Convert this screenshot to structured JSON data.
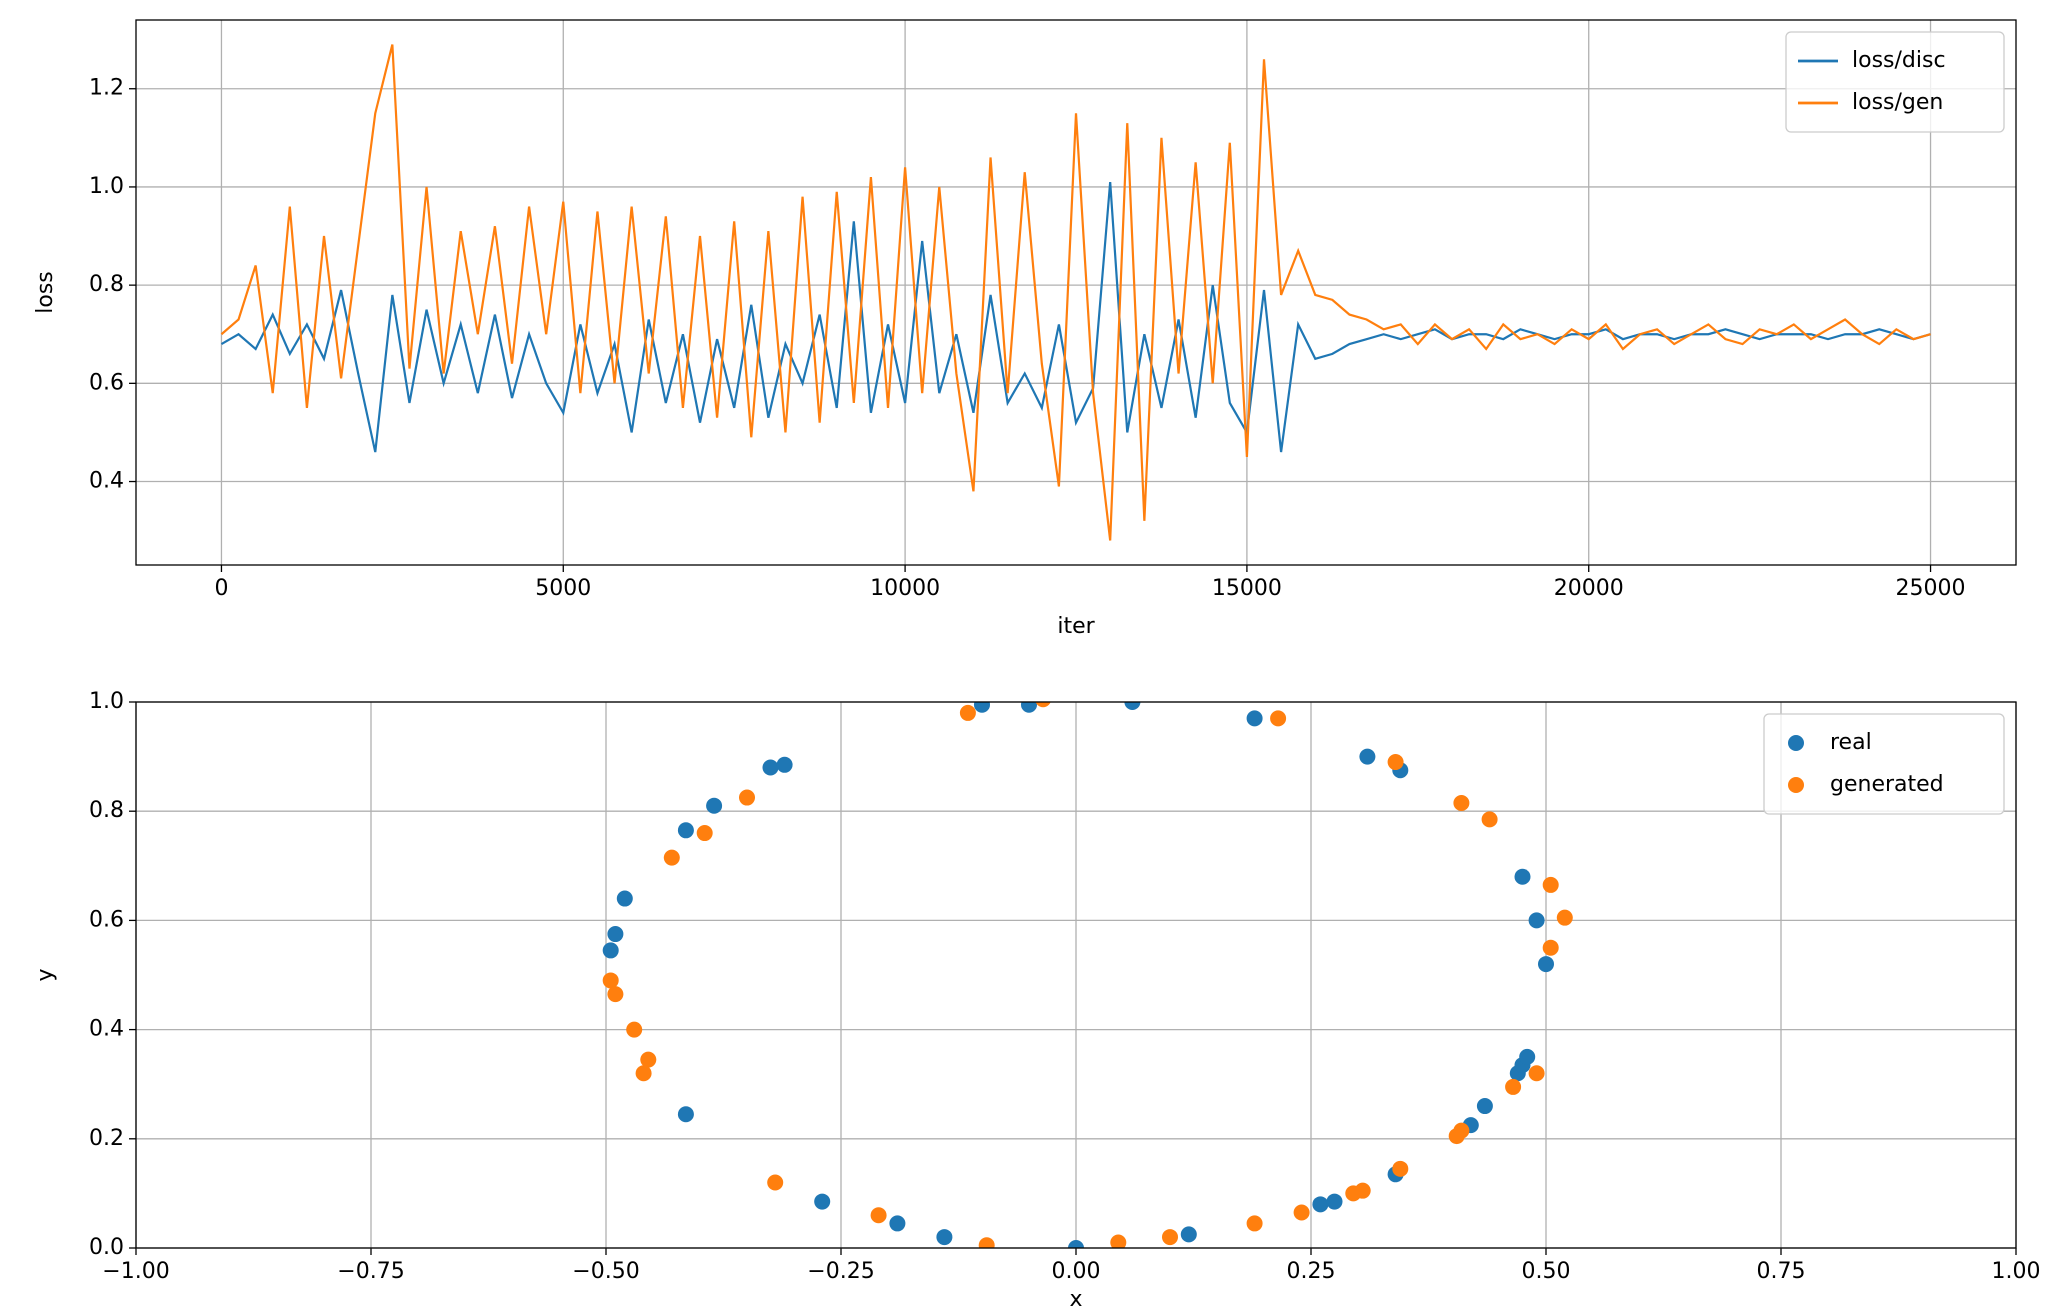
{
  "chart_data": [
    {
      "type": "line",
      "xlabel": "iter",
      "ylabel": "loss",
      "legend": "upper right",
      "grid": true,
      "xlim": [
        -1250,
        26250
      ],
      "ylim": [
        0.23,
        1.34
      ],
      "xticks": [
        0,
        5000,
        10000,
        15000,
        20000,
        25000
      ],
      "yticks": [
        0.4,
        0.6,
        0.8,
        {
          "value": 1.0,
          "label": "1.0"
        },
        1.2
      ],
      "x": [
        0,
        250,
        500,
        750,
        1000,
        1250,
        1500,
        1750,
        2000,
        2250,
        2500,
        2750,
        3000,
        3250,
        3500,
        3750,
        4000,
        4250,
        4500,
        4750,
        5000,
        5250,
        5500,
        5750,
        6000,
        6250,
        6500,
        6750,
        7000,
        7250,
        7500,
        7750,
        8000,
        8250,
        8500,
        8750,
        9000,
        9250,
        9500,
        9750,
        10000,
        10250,
        10500,
        10750,
        11000,
        11250,
        11500,
        11750,
        12000,
        12250,
        12500,
        12750,
        13000,
        13250,
        13500,
        13750,
        14000,
        14250,
        14500,
        14750,
        15000,
        15250,
        15500,
        15750,
        16000,
        16250,
        16500,
        16750,
        17000,
        17250,
        17500,
        17750,
        18000,
        18250,
        18500,
        18750,
        19000,
        19250,
        19500,
        19750,
        20000,
        20250,
        20500,
        20750,
        21000,
        21250,
        21500,
        21750,
        22000,
        22250,
        22500,
        22750,
        23000,
        23250,
        23500,
        23750,
        24000,
        24250,
        24500,
        24750,
        25000
      ],
      "series": [
        {
          "name": "loss/disc",
          "color": "#1f77b4",
          "values": [
            0.68,
            0.7,
            0.67,
            0.74,
            0.66,
            0.72,
            0.65,
            0.79,
            0.62,
            0.46,
            0.78,
            0.56,
            0.75,
            0.6,
            0.72,
            0.58,
            0.74,
            0.57,
            0.7,
            0.6,
            0.54,
            0.72,
            0.58,
            0.68,
            0.5,
            0.73,
            0.56,
            0.7,
            0.52,
            0.69,
            0.55,
            0.76,
            0.53,
            0.68,
            0.6,
            0.74,
            0.55,
            0.93,
            0.54,
            0.72,
            0.56,
            0.89,
            0.58,
            0.7,
            0.54,
            0.78,
            0.56,
            0.62,
            0.55,
            0.72,
            0.52,
            0.59,
            1.01,
            0.5,
            0.7,
            0.55,
            0.73,
            0.53,
            0.8,
            0.56,
            0.5,
            0.79,
            0.46,
            0.72,
            0.65,
            0.66,
            0.68,
            0.69,
            0.7,
            0.69,
            0.7,
            0.71,
            0.69,
            0.7,
            0.7,
            0.69,
            0.71,
            0.7,
            0.69,
            0.7,
            0.7,
            0.71,
            0.69,
            0.7,
            0.7,
            0.69,
            0.7,
            0.7,
            0.71,
            0.7,
            0.69,
            0.7,
            0.7,
            0.7,
            0.69,
            0.7,
            0.7,
            0.71,
            0.7,
            0.69,
            0.7
          ]
        },
        {
          "name": "loss/gen",
          "color": "#ff7f0e",
          "values": [
            0.7,
            0.73,
            0.84,
            0.58,
            0.96,
            0.55,
            0.9,
            0.61,
            0.88,
            1.15,
            1.29,
            0.63,
            1.0,
            0.62,
            0.91,
            0.7,
            0.92,
            0.64,
            0.96,
            0.7,
            0.97,
            0.58,
            0.95,
            0.6,
            0.96,
            0.62,
            0.94,
            0.55,
            0.9,
            0.53,
            0.93,
            0.49,
            0.91,
            0.5,
            0.98,
            0.52,
            0.99,
            0.56,
            1.02,
            0.55,
            1.04,
            0.58,
            1.0,
            0.62,
            0.38,
            1.06,
            0.58,
            1.03,
            0.64,
            0.39,
            1.15,
            0.58,
            0.28,
            1.13,
            0.32,
            1.1,
            0.62,
            1.05,
            0.6,
            1.09,
            0.45,
            1.26,
            0.78,
            0.87,
            0.78,
            0.77,
            0.74,
            0.73,
            0.71,
            0.72,
            0.68,
            0.72,
            0.69,
            0.71,
            0.67,
            0.72,
            0.69,
            0.7,
            0.68,
            0.71,
            0.69,
            0.72,
            0.67,
            0.7,
            0.71,
            0.68,
            0.7,
            0.72,
            0.69,
            0.68,
            0.71,
            0.7,
            0.72,
            0.69,
            0.71,
            0.73,
            0.7,
            0.68,
            0.71,
            0.69,
            0.7
          ]
        }
      ]
    },
    {
      "type": "scatter",
      "xlabel": "x",
      "ylabel": "y",
      "legend": "upper right",
      "grid": true,
      "xlim": [
        -1,
        1
      ],
      "ylim": [
        0,
        1
      ],
      "xticks": [
        {
          "value": -1,
          "label": "−1.00"
        },
        {
          "value": -0.75,
          "label": "−0.75"
        },
        {
          "value": -0.5,
          "label": "−0.50"
        },
        {
          "value": -0.25,
          "label": "−0.25"
        },
        {
          "value": 0,
          "label": "0.00"
        },
        {
          "value": 0.25,
          "label": "0.25"
        },
        {
          "value": 0.5,
          "label": "0.50"
        },
        {
          "value": 0.75,
          "label": "0.75"
        },
        {
          "value": 1,
          "label": "1.00"
        }
      ],
      "yticks": [
        {
          "value": 0,
          "label": "0.0"
        },
        0.2,
        0.4,
        0.6,
        0.8,
        {
          "value": 1,
          "label": "1.0"
        }
      ],
      "series": [
        {
          "name": "real",
          "color": "#1f77b4",
          "x": [
            -0.1,
            -0.05,
            0.06,
            0.19,
            0.31,
            0.345,
            -0.325,
            -0.31,
            -0.385,
            -0.415,
            -0.48,
            -0.49,
            -0.495,
            -0.415,
            -0.27,
            -0.19,
            -0.14,
            0.0,
            0.12,
            0.26,
            0.275,
            0.34,
            0.42,
            0.435,
            0.47,
            0.475,
            0.48,
            0.475,
            0.49,
            0.5
          ],
          "y": [
            0.995,
            0.995,
            1.0,
            0.97,
            0.9,
            0.875,
            0.88,
            0.885,
            0.81,
            0.765,
            0.64,
            0.575,
            0.545,
            0.245,
            0.085,
            0.045,
            0.02,
            0.0,
            0.025,
            0.08,
            0.085,
            0.135,
            0.225,
            0.26,
            0.32,
            0.335,
            0.35,
            0.68,
            0.6,
            0.52
          ]
        },
        {
          "name": "generated",
          "color": "#ff7f0e",
          "x": [
            -0.115,
            -0.035,
            0.215,
            0.34,
            -0.35,
            -0.395,
            -0.43,
            -0.495,
            -0.49,
            -0.47,
            -0.455,
            -0.46,
            -0.32,
            -0.21,
            -0.095,
            0.045,
            0.1,
            0.19,
            0.24,
            0.295,
            0.305,
            0.345,
            0.405,
            0.41,
            0.465,
            0.49,
            0.505,
            0.52,
            0.505,
            0.44,
            0.41
          ],
          "y": [
            0.98,
            1.005,
            0.97,
            0.89,
            0.825,
            0.76,
            0.715,
            0.49,
            0.465,
            0.4,
            0.345,
            0.32,
            0.12,
            0.06,
            0.005,
            0.01,
            0.02,
            0.045,
            0.065,
            0.1,
            0.105,
            0.145,
            0.205,
            0.215,
            0.295,
            0.32,
            0.55,
            0.605,
            0.665,
            0.785,
            0.815
          ]
        }
      ]
    }
  ]
}
